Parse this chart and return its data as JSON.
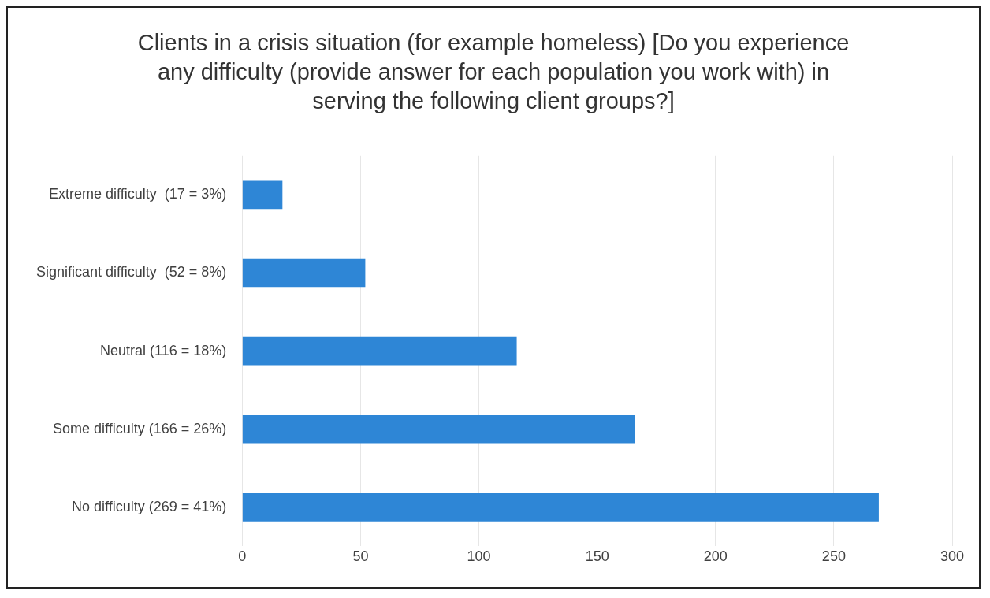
{
  "chart_data": {
    "type": "bar",
    "orientation": "horizontal",
    "title": "Clients in a crisis situation (for example homeless) [Do you experience any difficulty (provide answer for each population you work with) in serving the following client groups?]",
    "categories": [
      "Extreme difficulty  (17 = 3%)",
      "Significant difficulty  (52 = 8%)",
      "Neutral (116 = 18%)",
      "Some difficulty (166 = 26%)",
      "No difficulty (269 = 41%)"
    ],
    "values": [
      17,
      52,
      116,
      166,
      269
    ],
    "color": "#2e86d6",
    "xlim": [
      0,
      300
    ],
    "xticks": [
      0,
      50,
      100,
      150,
      200,
      250,
      300
    ],
    "grid": "x",
    "legend": false
  }
}
